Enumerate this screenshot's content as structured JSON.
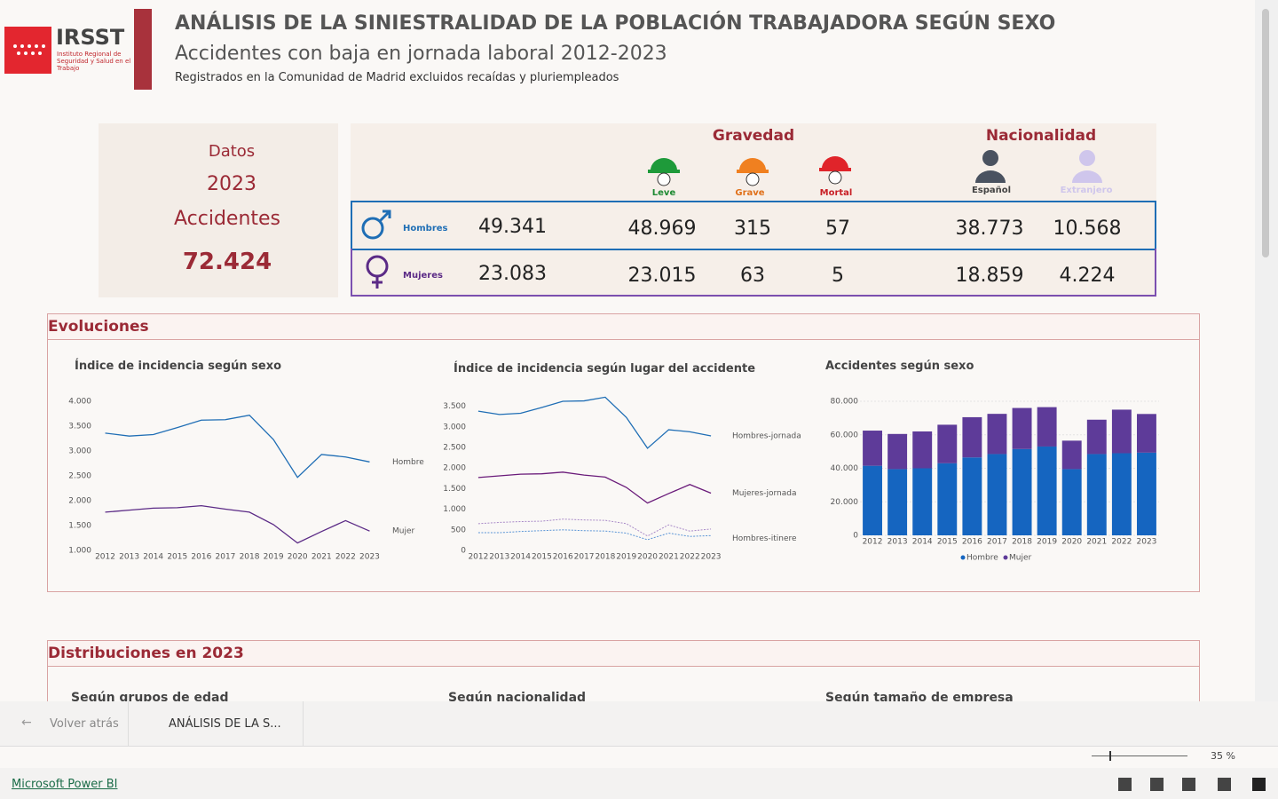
{
  "header": {
    "logo_text": "IRSST",
    "logo_subtitle": "Instituto Regional de Seguridad y Salud en el Trabajo",
    "title": "ANÁLISIS DE LA SINIESTRALIDAD DE LA POBLACIÓN TRABAJADORA SEGÚN SEXO",
    "subtitle": "Accidentes con baja en jornada laboral 2012-2023",
    "note": "Registrados en la Comunidad de Madrid excluidos recaídas y pluriempleados"
  },
  "summary": {
    "label": "Datos",
    "year": "2023",
    "metric": "Accidentes",
    "total": "72.424"
  },
  "kpi": {
    "groups": [
      "Gravedad",
      "Nacionalidad"
    ],
    "columns": [
      "Leve",
      "Grave",
      "Mortal",
      "Español",
      "Extranjero"
    ],
    "rows": [
      {
        "label": "Hombres",
        "total": "49.341",
        "cells": [
          "48.969",
          "315",
          "57",
          "38.773",
          "10.568"
        ]
      },
      {
        "label": "Mujeres",
        "total": "23.083",
        "cells": [
          "23.015",
          "63",
          "5",
          "18.859",
          "4.224"
        ]
      }
    ]
  },
  "sections": [
    {
      "title": "Evoluciones"
    },
    {
      "title": "Distribuciones en 2023",
      "panels": [
        "Según grupos de edad",
        "Según nacionalidad",
        "Según tamaño de empresa"
      ]
    }
  ],
  "chart_data": [
    {
      "type": "line",
      "title": "Índice de incidencia según sexo",
      "categories": [
        "2012",
        "2013",
        "2014",
        "2015",
        "2016",
        "2017",
        "2018",
        "2019",
        "2020",
        "2021",
        "2022",
        "2023"
      ],
      "series": [
        {
          "name": "Hombre",
          "color": "#1f6eb5",
          "values": [
            3360,
            3300,
            3330,
            3470,
            3620,
            3630,
            3720,
            3230,
            2470,
            2930,
            2880,
            2780
          ]
        },
        {
          "name": "Mujer",
          "color": "#5b2a86",
          "values": [
            1770,
            1810,
            1850,
            1860,
            1900,
            1830,
            1770,
            1520,
            1150,
            1380,
            1600,
            1390
          ]
        }
      ],
      "ylim": [
        1000,
        4000
      ],
      "yticks": [
        {
          "value": 1000,
          "label": "1.000"
        },
        {
          "value": 1500,
          "label": "1.500"
        },
        {
          "value": 2000,
          "label": "2.000"
        },
        {
          "value": 2500,
          "label": "2.500"
        },
        {
          "value": 3000,
          "label": "3.000"
        },
        {
          "value": 3500,
          "label": "3.500"
        },
        {
          "value": 4000,
          "label": "4.000"
        }
      ]
    },
    {
      "type": "line",
      "title": "Índice de incidencia según lugar del accidente",
      "categories": [
        "2012",
        "2013",
        "2014",
        "2015",
        "2016",
        "2017",
        "2018",
        "2019",
        "2020",
        "2021",
        "2022",
        "2023"
      ],
      "series": [
        {
          "name": "Hombres-jornada",
          "color": "#1f6eb5",
          "values": [
            3380,
            3300,
            3330,
            3470,
            3620,
            3630,
            3720,
            3230,
            2480,
            2930,
            2880,
            2780
          ]
        },
        {
          "name": "Mujeres-jornada",
          "color": "#6a1b7a",
          "values": [
            1770,
            1810,
            1850,
            1860,
            1900,
            1830,
            1780,
            1530,
            1150,
            1380,
            1600,
            1390
          ]
        },
        {
          "color": "#a98ac8",
          "style": "dotted",
          "values": [
            650,
            680,
            700,
            710,
            760,
            740,
            730,
            650,
            350,
            620,
            470,
            520
          ]
        },
        {
          "name": "Hombres-itinere",
          "color": "#5b95d6",
          "style": "dotted",
          "values": [
            430,
            430,
            460,
            480,
            500,
            480,
            470,
            420,
            260,
            420,
            340,
            360
          ]
        }
      ],
      "ylim": [
        0,
        3750
      ],
      "yticks": [
        0,
        500,
        {
          "value": 1000,
          "label": "1.000"
        },
        {
          "value": 1500,
          "label": "1.500"
        },
        {
          "value": 2000,
          "label": "2.000"
        },
        {
          "value": 2500,
          "label": "2.500"
        },
        {
          "value": 3000,
          "label": "3.000"
        },
        {
          "value": 3500,
          "label": "3.500"
        }
      ]
    },
    {
      "type": "stacked_bar",
      "title": "Accidentes según sexo",
      "categories": [
        "2012",
        "2013",
        "2014",
        "2015",
        "2016",
        "2017",
        "2018",
        "2019",
        "2020",
        "2021",
        "2022",
        "2023"
      ],
      "series": [
        {
          "name": "Hombre",
          "color": "#1565c0",
          "values": [
            41500,
            39500,
            40000,
            43000,
            46500,
            48500,
            51500,
            53000,
            39500,
            48500,
            49000,
            49341
          ]
        },
        {
          "name": "Mujer",
          "color": "#5e3b99",
          "values": [
            21000,
            21000,
            22000,
            23000,
            24000,
            24000,
            24500,
            23500,
            17000,
            20500,
            26000,
            23083
          ]
        }
      ],
      "ylim": [
        0,
        80000
      ],
      "yticks": [
        0,
        {
          "value": 20000,
          "label": "20.000"
        },
        {
          "value": 40000,
          "label": "40.000"
        },
        {
          "value": 60000,
          "label": "60.000"
        },
        {
          "value": 80000,
          "label": "80.000"
        }
      ],
      "legend": "bottom"
    }
  ],
  "toolbar": {
    "back": "Volver atrás",
    "page": "ANÁLISIS DE LA S...",
    "zoom": "35 %"
  },
  "footer": {
    "brand": "Microsoft Power BI"
  }
}
